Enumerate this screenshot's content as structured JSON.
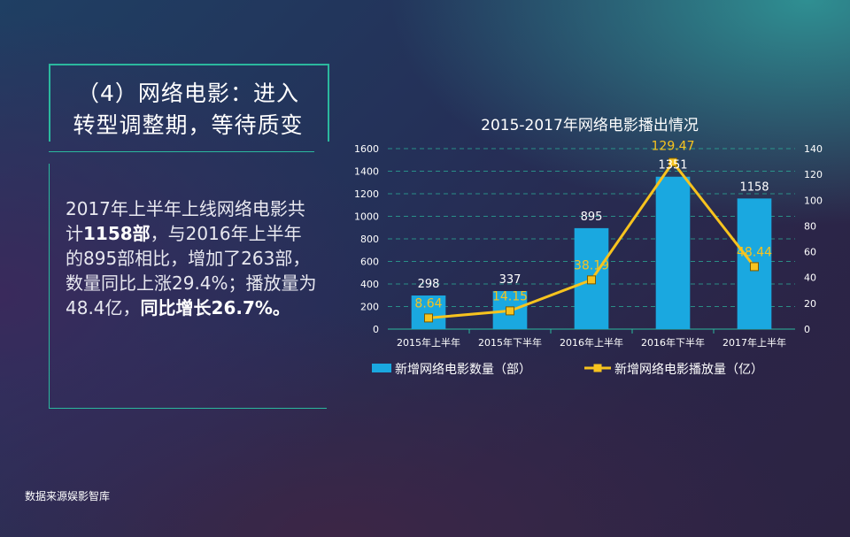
{
  "heading": {
    "line1": "（4）网络电影：进入",
    "line2": "转型调整期，等待质变"
  },
  "description": {
    "part1": "2017年上半年上线网络电影共计",
    "highlight1": "1158部",
    "part2": "，与2016年上半年的895部相比，增加了263部，数量同比上涨29.4%；播放量为48.4亿，",
    "highlight2": "同比增长26.7%。"
  },
  "source": "数据来源娱影智库",
  "chart_data": {
    "type": "bar",
    "title": "2015-2017年网络电影播出情况",
    "categories": [
      "2015年上半年",
      "2015年下半年",
      "2016年上半年",
      "2016年下半年",
      "2017年上半年"
    ],
    "series": [
      {
        "name": "新增网络电影数量（部）",
        "type": "bar",
        "axis": "left",
        "values": [
          298,
          337,
          895,
          1351,
          1158
        ],
        "labels": [
          "298",
          "337",
          "895",
          "1351",
          "1158"
        ],
        "color": "#1aa8e0"
      },
      {
        "name": "新增网络电影播放量（亿）",
        "type": "line",
        "axis": "right",
        "values": [
          8.64,
          14.15,
          38.19,
          129.47,
          48.44
        ],
        "labels": [
          "8.64",
          "14.15",
          "38.19",
          "129.47",
          "48.44"
        ],
        "color": "#f7c31e"
      }
    ],
    "ylim_left": [
      0,
      1600
    ],
    "yticks_left": [
      "0",
      "200",
      "400",
      "600",
      "800",
      "1000",
      "1200",
      "1400",
      "1600"
    ],
    "ylim_right": [
      0,
      140
    ],
    "yticks_right": [
      "0",
      "20",
      "40",
      "60",
      "80",
      "100",
      "120",
      "140"
    ],
    "grid": true,
    "legend_position": "bottom"
  }
}
